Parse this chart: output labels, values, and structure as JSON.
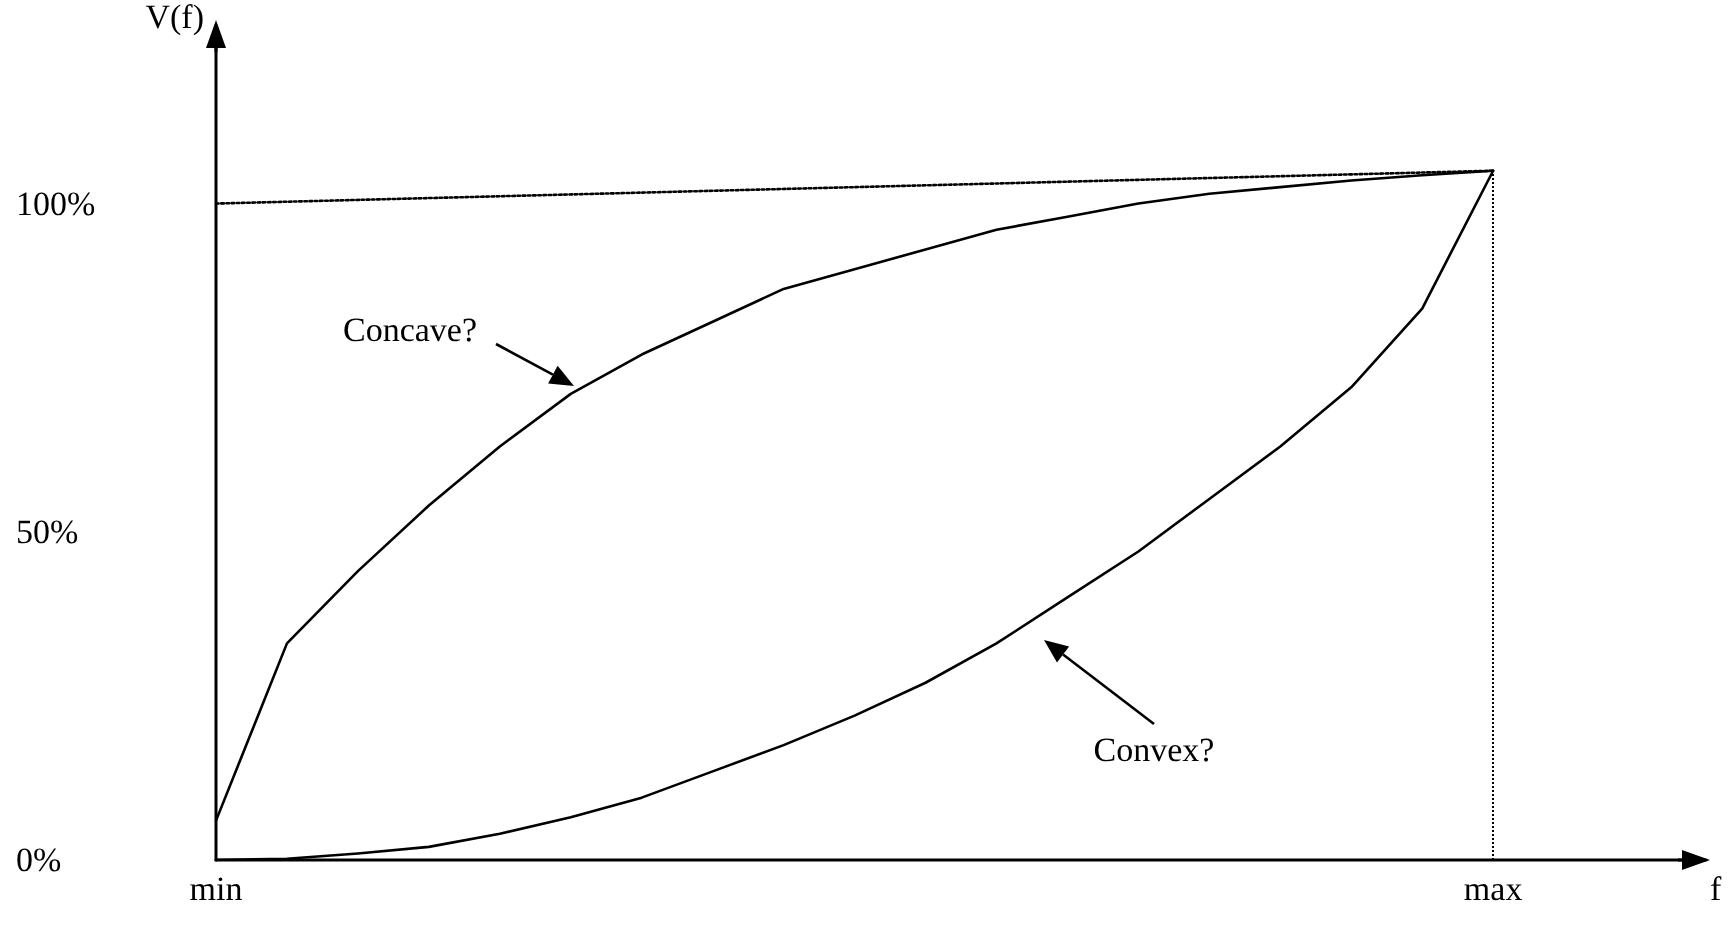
{
  "chart_data": {
    "type": "line",
    "xlabel": "f",
    "ylabel": "V(f)",
    "categories": [
      "min",
      null,
      null,
      null,
      null,
      null,
      null,
      null,
      null,
      null,
      null,
      null,
      null,
      null,
      null,
      null,
      null,
      null,
      "max",
      null,
      null,
      null
    ],
    "ylim": [
      0,
      124
    ],
    "yticks": [
      {
        "value": 0,
        "label": "0%"
      },
      {
        "value": 50,
        "label": "50%"
      },
      {
        "value": 100,
        "label": "100%"
      }
    ],
    "series": [
      {
        "color": "#000000",
        "values": [
          6,
          33,
          44,
          54,
          63,
          71,
          77,
          82,
          87,
          90,
          93,
          96,
          98,
          100,
          101.5,
          102.5,
          103.5,
          104.3,
          105,
          null,
          null,
          null
        ]
      },
      {
        "color": "#000000",
        "values": [
          0,
          0.2,
          1,
          2,
          4,
          6.5,
          9.5,
          13.5,
          17.5,
          22,
          27,
          33,
          40,
          47,
          55,
          63,
          72,
          84,
          105,
          null,
          null,
          null
        ]
      },
      {
        "color": "#000000",
        "line_style": "dotted",
        "values": [
          100,
          null,
          null,
          null,
          null,
          null,
          null,
          null,
          null,
          null,
          null,
          null,
          null,
          null,
          null,
          null,
          null,
          null,
          105,
          null,
          null,
          null
        ]
      }
    ],
    "ref_lines": [
      {
        "axis": "x",
        "value": "max",
        "line_style": "dotted",
        "color": "#000000"
      }
    ],
    "annotations": [
      "Concave?",
      "Convex?"
    ],
    "grid": false,
    "marker": "none",
    "line_style": "solid"
  }
}
